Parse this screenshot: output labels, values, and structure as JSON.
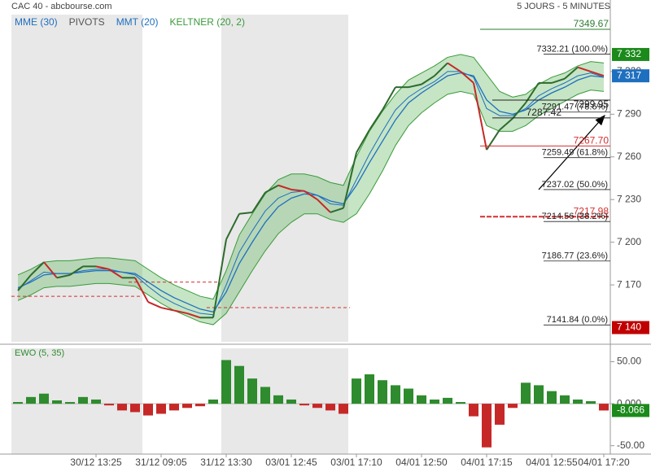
{
  "header": {
    "title": "CAC 40 - abcbourse.com",
    "period": "5 JOURS - 5 MINUTES"
  },
  "chart_data": [
    {
      "type": "price",
      "legend": [
        {
          "name": "MME (30)",
          "color": "#1f6fbf"
        },
        {
          "name": "PIVOTS",
          "color": "#555555"
        },
        {
          "name": "MMT (20)",
          "color": "#1f6fbf"
        },
        {
          "name": "KELTNER (20, 2)",
          "color": "#3a9a3a"
        }
      ],
      "categories": [
        null,
        null,
        null,
        null,
        null,
        null,
        "30/12 13:25",
        null,
        null,
        null,
        null,
        "31/12 09:05",
        null,
        null,
        null,
        null,
        "31/12 13:30",
        null,
        null,
        null,
        null,
        "03/01 12:45",
        null,
        null,
        null,
        null,
        "03/01 17:10",
        null,
        null,
        null,
        null,
        "04/01 12:50",
        null,
        null,
        null,
        null,
        "04/01 17:15",
        null,
        null,
        null,
        null,
        "04/01 12:55",
        null,
        null,
        null,
        "04/01 17:20"
      ],
      "values": [
        7166,
        7177,
        7186,
        7175,
        7177,
        7183,
        7183,
        7181,
        7175,
        7175,
        7158,
        7154,
        7152,
        7150,
        7147,
        7147,
        7202,
        7220,
        7221,
        7235,
        7240,
        7237,
        7236,
        7230,
        7221,
        7224,
        7263,
        7279,
        7293,
        7309,
        7309,
        7311,
        7317,
        7326,
        7320,
        7312,
        7265,
        7279,
        7287,
        7298,
        7312,
        7312,
        7315,
        7323,
        7320,
        7317
      ],
      "color": "#2e6b2e",
      "series": [
        {
          "name": "MME (30)",
          "color": "#1f6fbf",
          "values": [
            7168,
            7172,
            7177,
            7178,
            7178,
            7179,
            7180,
            7180,
            7179,
            7178,
            7172,
            7166,
            7161,
            7157,
            7153,
            7151,
            7165,
            7185,
            7200,
            7214,
            7225,
            7231,
            7234,
            7233,
            7229,
            7227,
            7240,
            7256,
            7271,
            7286,
            7298,
            7305,
            7311,
            7317,
            7319,
            7317,
            7300,
            7292,
            7290,
            7293,
            7300,
            7305,
            7309,
            7314,
            7317,
            7316
          ]
        },
        {
          "name": "MMT (20)",
          "color": "#1f6fbf",
          "values": [
            7167,
            7173,
            7179,
            7178,
            7178,
            7180,
            7181,
            7181,
            7179,
            7177,
            7169,
            7162,
            7157,
            7153,
            7150,
            7149,
            7170,
            7193,
            7208,
            7222,
            7231,
            7235,
            7236,
            7233,
            7227,
            7226,
            7244,
            7262,
            7278,
            7293,
            7302,
            7308,
            7313,
            7320,
            7320,
            7316,
            7294,
            7289,
            7289,
            7294,
            7303,
            7308,
            7312,
            7317,
            7319,
            7316
          ]
        }
      ],
      "keltner": {
        "name": "KELTNER (20, 2)",
        "color": "#3a9a3a",
        "upper": [
          7177,
          7181,
          7186,
          7187,
          7187,
          7188,
          7189,
          7189,
          7188,
          7187,
          7181,
          7175,
          7170,
          7166,
          7162,
          7160,
          7180,
          7205,
          7220,
          7234,
          7244,
          7248,
          7248,
          7246,
          7242,
          7240,
          7260,
          7278,
          7292,
          7304,
          7314,
          7319,
          7324,
          7330,
          7332,
          7330,
          7318,
          7306,
          7302,
          7304,
          7311,
          7316,
          7319,
          7324,
          7327,
          7326
        ],
        "lower": [
          7159,
          7163,
          7168,
          7169,
          7169,
          7170,
          7171,
          7171,
          7170,
          7169,
          7163,
          7157,
          7152,
          7148,
          7144,
          7142,
          7150,
          7165,
          7180,
          7194,
          7206,
          7214,
          7220,
          7220,
          7216,
          7214,
          7220,
          7234,
          7250,
          7268,
          7282,
          7291,
          7298,
          7304,
          7306,
          7304,
          7282,
          7278,
          7278,
          7282,
          7289,
          7294,
          7299,
          7304,
          7307,
          7306
        ]
      },
      "pivots": {
        "name": "PIVOTS",
        "color": "#d32f2f",
        "levels": [
          {
            "from": 0,
            "to": 9,
            "value": 7162
          },
          {
            "from": 9,
            "to": 15,
            "value": 7172
          },
          {
            "from": 15,
            "to": 25,
            "value": 7154
          }
        ]
      },
      "fibonacci": [
        {
          "value": 7332.21,
          "label": "7332.21  (100.0%)"
        },
        {
          "value": 7291.47,
          "label": "7291.47  (78.6%)"
        },
        {
          "value": 7259.49,
          "label": "7259.49  (61.8%)"
        },
        {
          "value": 7237.02,
          "label": "7237.02  (50.0%)"
        },
        {
          "value": 7214.56,
          "label": "7214.56  (38.2%)"
        },
        {
          "value": 7186.77,
          "label": "7186.77  (23.6%)"
        },
        {
          "value": 7141.84,
          "label": "7141.84  (0.0%)"
        }
      ],
      "levels": [
        {
          "value": 7349.67,
          "color": "#2e7d32"
        },
        {
          "value": 7299.95,
          "color": "#222222"
        },
        {
          "value": 7287.42,
          "color": "#222222"
        },
        {
          "value": 7267.7,
          "label": "7267.70",
          "color": "#d32f2f"
        },
        {
          "value": 7217.98,
          "color": "#d32f2f"
        }
      ],
      "badges": [
        {
          "value": 7332,
          "label": "7 332",
          "color": "#1b8a1b"
        },
        {
          "value": 7317,
          "label": "7 317",
          "color": "#1f6fbf"
        },
        {
          "value": 7140,
          "label": "7 140",
          "color": "#c00000"
        }
      ],
      "ylim": [
        7130,
        7360
      ],
      "yticks": [
        {
          "value": 7170,
          "label": "7 170"
        },
        {
          "value": 7200,
          "label": "7 200"
        },
        {
          "value": 7230,
          "label": "7 230"
        },
        {
          "value": 7260,
          "label": "7 260"
        },
        {
          "value": 7290,
          "label": "7 290"
        },
        {
          "value": 7320,
          "label": "7 320"
        }
      ]
    },
    {
      "type": "histogram-osc",
      "title": "EWO (5, 35)",
      "values": [
        2,
        8,
        12,
        4,
        2,
        8,
        5,
        -2,
        -8,
        -10,
        -14,
        -12,
        -8,
        -5,
        -3,
        5,
        52,
        45,
        30,
        20,
        10,
        5,
        -2,
        -5,
        -8,
        -12,
        30,
        35,
        28,
        22,
        18,
        10,
        5,
        7,
        2,
        -15,
        -52,
        -25,
        -5,
        25,
        22,
        15,
        10,
        5,
        3,
        -8.066
      ],
      "colors": {
        "positive": "#2e8b2e",
        "negative": "#c62828"
      },
      "badge": {
        "value": -8.066,
        "color": "#1b8a1b"
      },
      "ylim": [
        -60,
        66
      ],
      "yticks": [
        {
          "value": -50,
          "label": "-50.00"
        },
        {
          "value": 0,
          "label": "0.000"
        },
        {
          "value": 50,
          "label": "50.00"
        }
      ]
    }
  ]
}
